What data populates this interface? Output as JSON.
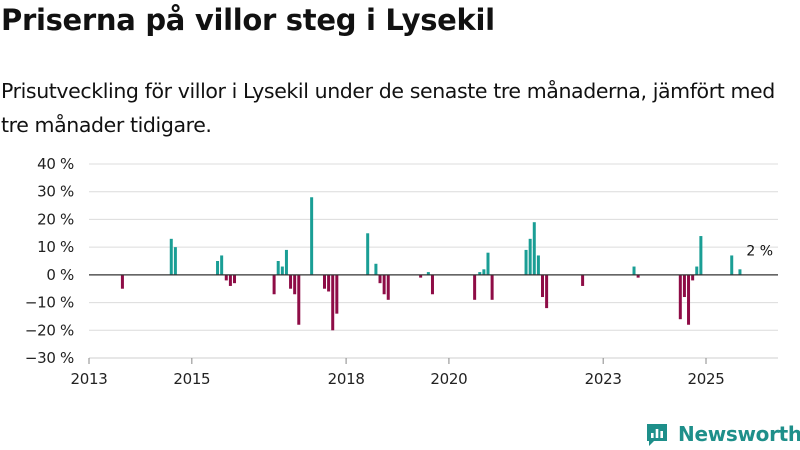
{
  "title": "Priserna på villor steg i Lysekil",
  "subtitle": "Prisutveckling för villor i Lysekil under de senaste tre månaderna, jämfört med tre månader tidigare.",
  "logo_text": "Newsworthy",
  "colors": {
    "positive": "#1a9e95",
    "negative": "#8e0c46",
    "grid": "#dcdcdc",
    "zero_line": "#333333"
  },
  "chart_data": {
    "type": "bar",
    "title": "Priserna på villor steg i Lysekil",
    "xlabel": "",
    "ylabel": "",
    "ylim": [
      -30,
      40
    ],
    "xlim": [
      2013.0,
      2026.4
    ],
    "y_ticks": [
      40,
      30,
      20,
      10,
      0,
      -10,
      -20,
      -30
    ],
    "y_tick_labels": [
      "40 %",
      "30 %",
      "20 %",
      "10 %",
      "0 %",
      "−10 %",
      "−20 %",
      "−30 %"
    ],
    "x_ticks": [
      2013,
      2015,
      2018,
      2020,
      2023,
      2025
    ],
    "x_tick_labels": [
      "2013",
      "2015",
      "2018",
      "2020",
      "2023",
      "2025"
    ],
    "annotation": {
      "text": "2 %",
      "x": 2025.85,
      "y": 2
    },
    "points": [
      {
        "x": 2013.65,
        "y": -5
      },
      {
        "x": 2014.6,
        "y": 13
      },
      {
        "x": 2014.68,
        "y": 10
      },
      {
        "x": 2015.5,
        "y": 5
      },
      {
        "x": 2015.58,
        "y": 7
      },
      {
        "x": 2015.67,
        "y": -2
      },
      {
        "x": 2015.75,
        "y": -4
      },
      {
        "x": 2015.83,
        "y": -3
      },
      {
        "x": 2016.6,
        "y": -7
      },
      {
        "x": 2016.68,
        "y": 5
      },
      {
        "x": 2016.76,
        "y": 3
      },
      {
        "x": 2016.84,
        "y": 9
      },
      {
        "x": 2016.92,
        "y": -5
      },
      {
        "x": 2017.0,
        "y": -7
      },
      {
        "x": 2017.08,
        "y": -18
      },
      {
        "x": 2017.33,
        "y": 28
      },
      {
        "x": 2017.58,
        "y": -5
      },
      {
        "x": 2017.66,
        "y": -6
      },
      {
        "x": 2017.74,
        "y": -20
      },
      {
        "x": 2017.82,
        "y": -14
      },
      {
        "x": 2018.42,
        "y": 15
      },
      {
        "x": 2018.58,
        "y": 4
      },
      {
        "x": 2018.66,
        "y": -3
      },
      {
        "x": 2018.74,
        "y": -7
      },
      {
        "x": 2018.82,
        "y": -9
      },
      {
        "x": 2019.45,
        "y": -1
      },
      {
        "x": 2019.6,
        "y": 1
      },
      {
        "x": 2019.68,
        "y": -7
      },
      {
        "x": 2020.5,
        "y": -9
      },
      {
        "x": 2020.6,
        "y": 1
      },
      {
        "x": 2020.68,
        "y": 2
      },
      {
        "x": 2020.76,
        "y": 8
      },
      {
        "x": 2020.84,
        "y": -9
      },
      {
        "x": 2021.5,
        "y": 9
      },
      {
        "x": 2021.58,
        "y": 13
      },
      {
        "x": 2021.66,
        "y": 19
      },
      {
        "x": 2021.74,
        "y": 7
      },
      {
        "x": 2021.82,
        "y": -8
      },
      {
        "x": 2021.9,
        "y": -12
      },
      {
        "x": 2022.6,
        "y": -4
      },
      {
        "x": 2023.6,
        "y": 3
      },
      {
        "x": 2023.68,
        "y": -1
      },
      {
        "x": 2024.5,
        "y": -16
      },
      {
        "x": 2024.58,
        "y": -8
      },
      {
        "x": 2024.66,
        "y": -18
      },
      {
        "x": 2024.74,
        "y": -2
      },
      {
        "x": 2024.82,
        "y": 3
      },
      {
        "x": 2024.9,
        "y": 14
      },
      {
        "x": 2025.5,
        "y": 7
      },
      {
        "x": 2025.66,
        "y": 2
      }
    ]
  }
}
